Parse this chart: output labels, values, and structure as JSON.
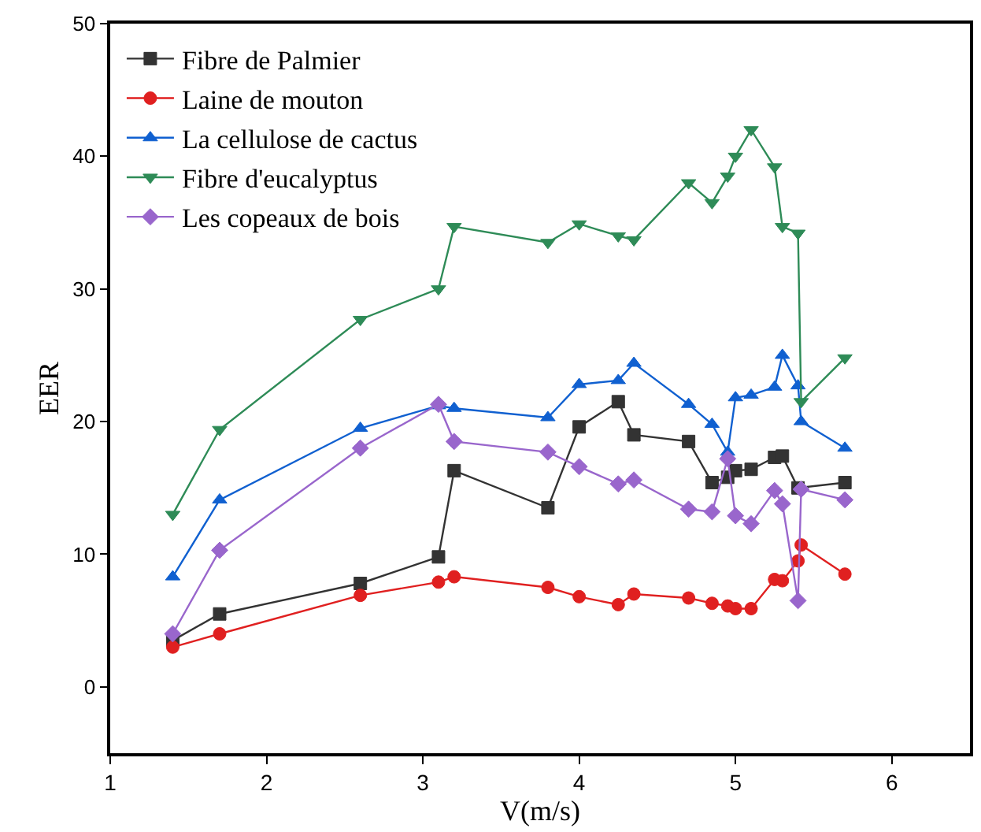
{
  "chart_data": {
    "type": "line",
    "xlabel": "V(m/s)",
    "ylabel": "EER",
    "xlim": [
      1,
      6.5
    ],
    "xticks": [
      1,
      2,
      3,
      4,
      5,
      6
    ],
    "ylim": [
      -5,
      50
    ],
    "yticks": [
      0,
      10,
      20,
      30,
      40,
      50
    ],
    "legend": "top left",
    "x": [
      1.4,
      1.7,
      2.6,
      3.1,
      3.2,
      3.8,
      4.0,
      4.25,
      4.35,
      4.7,
      4.85,
      4.95,
      5.0,
      5.1,
      5.25,
      5.3,
      5.4,
      5.42,
      5.7
    ],
    "series": [
      {
        "name": "Fibre de Palmier",
        "color": "#333333",
        "marker": "square",
        "values": [
          3.5,
          5.5,
          7.8,
          9.8,
          16.3,
          13.5,
          19.6,
          21.5,
          19.0,
          18.5,
          15.4,
          15.8,
          16.3,
          16.4,
          17.3,
          17.4,
          15.0,
          null,
          15.4
        ]
      },
      {
        "name": "Laine de mouton",
        "color": "#e02020",
        "marker": "circle",
        "values": [
          3.0,
          4.0,
          6.9,
          7.9,
          8.3,
          7.5,
          6.8,
          6.2,
          7.0,
          6.7,
          6.3,
          6.1,
          5.9,
          5.9,
          8.1,
          8.0,
          9.5,
          10.7,
          8.5
        ]
      },
      {
        "name": "La cellulose de cactus",
        "color": "#1060d0",
        "marker": "triangle",
        "values": [
          8.3,
          14.1,
          19.5,
          21.2,
          21.0,
          20.3,
          22.8,
          23.1,
          24.4,
          21.3,
          19.8,
          17.7,
          21.8,
          22.0,
          22.6,
          25.0,
          22.7,
          20.0,
          18.0
        ]
      },
      {
        "name": "Fibre d'eucalyptus",
        "color": "#2e8b57",
        "marker": "triangle-down",
        "values": [
          13.0,
          19.4,
          27.7,
          30.0,
          34.7,
          33.5,
          34.9,
          34.0,
          33.7,
          38.0,
          36.5,
          38.5,
          40.0,
          42.0,
          39.2,
          34.7,
          34.2,
          21.5,
          24.8
        ]
      },
      {
        "name": "Les copeaux de bois",
        "color": "#9966cc",
        "marker": "diamond",
        "values": [
          4.0,
          10.3,
          18.0,
          21.3,
          18.5,
          17.7,
          16.6,
          15.3,
          15.6,
          13.4,
          13.2,
          17.2,
          12.9,
          12.3,
          14.8,
          13.8,
          6.5,
          14.9,
          14.1
        ]
      }
    ]
  }
}
